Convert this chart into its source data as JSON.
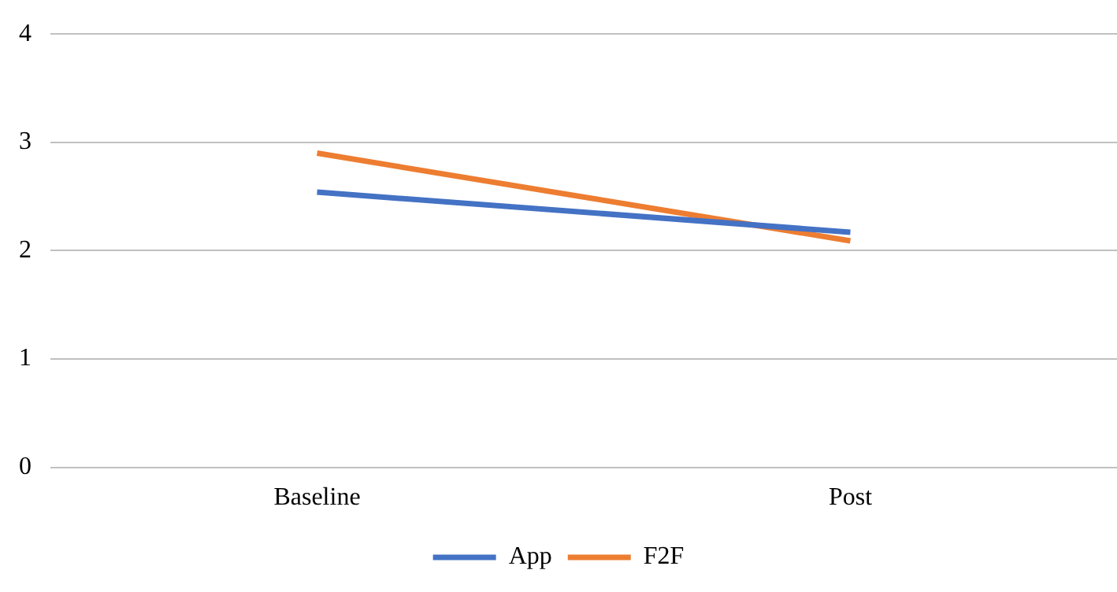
{
  "chart_data": {
    "type": "line",
    "categories": [
      "Baseline",
      "Post"
    ],
    "series": [
      {
        "name": "App",
        "color": "#4472c4",
        "values": [
          2.54,
          2.17
        ]
      },
      {
        "name": "F2F",
        "color": "#ed7d31",
        "values": [
          2.9,
          2.09
        ]
      }
    ],
    "ylim": [
      0,
      4
    ],
    "yticks": [
      0,
      1,
      2,
      3,
      4
    ],
    "grid": "y",
    "legend": "bottom",
    "marker": "none"
  }
}
